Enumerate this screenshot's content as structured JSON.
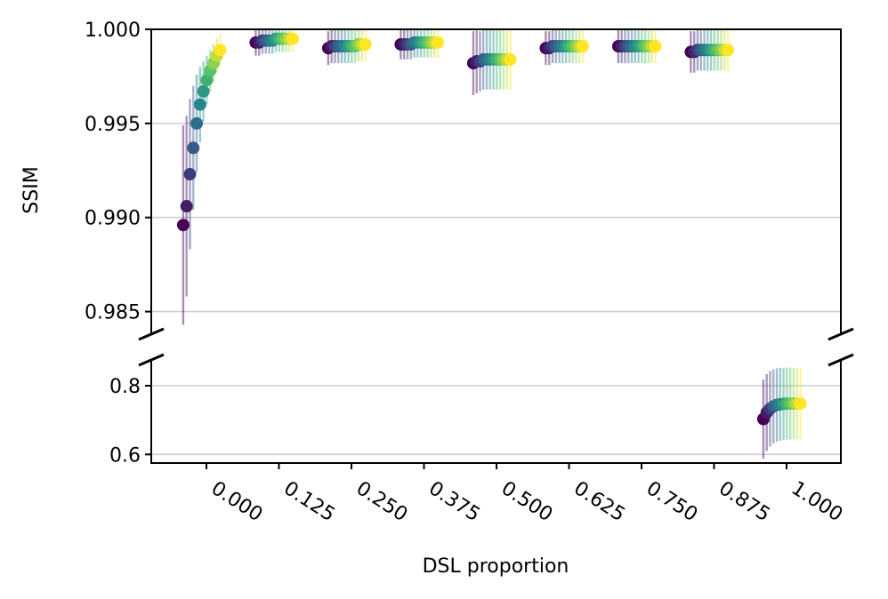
{
  "chart_data": {
    "type": "scatter",
    "title": "",
    "xlabel": "DSL proportion",
    "ylabel": "SSIM",
    "x_ticks": [
      "0.000",
      "0.125",
      "0.250",
      "0.375",
      "0.500",
      "0.625",
      "0.750",
      "0.875",
      "1.000"
    ],
    "xlim": [
      -0.095,
      1.09
    ],
    "broken_y_axis": true,
    "upper_panel": {
      "ylim": [
        0.9838,
        1.0
      ],
      "ticks": [
        "1.000",
        "0.995",
        "0.990",
        "0.985"
      ]
    },
    "lower_panel": {
      "ylim": [
        0.575,
        0.875
      ],
      "ticks": [
        "0.8",
        "0.6"
      ]
    },
    "grid": "horizontal",
    "colormap": [
      "#440154",
      "#3b528b",
      "#21918c",
      "#5ec962",
      "#fde725"
    ],
    "points_per_group": 12,
    "point_spacing": 0.0058,
    "groups": [
      {
        "x_start": -0.04,
        "panel": "upper",
        "mean": [
          0.9896,
          0.9906,
          0.9923,
          0.9937,
          0.995,
          0.996,
          0.9967,
          0.9973,
          0.9978,
          0.9982,
          0.9986,
          0.9989
        ],
        "err": [
          0.0053,
          0.0048,
          0.004,
          0.0033,
          0.0026,
          0.002,
          0.0016,
          0.0013,
          0.0011,
          0.001,
          0.0009,
          0.0008
        ]
      },
      {
        "x_start": 0.085,
        "panel": "upper",
        "mean": [
          0.9993,
          0.9993,
          0.9994,
          0.9994,
          0.9994,
          0.9994,
          0.9995,
          0.9995,
          0.9995,
          0.9995,
          0.9995,
          0.9995
        ],
        "err": [
          0.0007,
          0.0007,
          0.0007,
          0.0007,
          0.0007,
          0.0007,
          0.0007,
          0.0007,
          0.0007,
          0.0007,
          0.0007,
          0.0007
        ]
      },
      {
        "x_start": 0.21,
        "panel": "upper",
        "mean": [
          0.999,
          0.9991,
          0.9991,
          0.9991,
          0.9991,
          0.9991,
          0.9991,
          0.9991,
          0.9991,
          0.9992,
          0.9992,
          0.9992
        ],
        "err": [
          0.0009,
          0.0009,
          0.0009,
          0.0009,
          0.0009,
          0.0009,
          0.0009,
          0.0009,
          0.0009,
          0.0009,
          0.0009,
          0.0009
        ]
      },
      {
        "x_start": 0.335,
        "panel": "upper",
        "mean": [
          0.9992,
          0.9992,
          0.9992,
          0.9992,
          0.9993,
          0.9993,
          0.9993,
          0.9993,
          0.9993,
          0.9993,
          0.9993,
          0.9993
        ],
        "err": [
          0.0008,
          0.0008,
          0.0008,
          0.0008,
          0.0008,
          0.0008,
          0.0008,
          0.0008,
          0.0008,
          0.0008,
          0.0008,
          0.0008
        ]
      },
      {
        "x_start": 0.46,
        "panel": "upper",
        "mean": [
          0.9982,
          0.9983,
          0.9983,
          0.9984,
          0.9984,
          0.9984,
          0.9984,
          0.9984,
          0.9984,
          0.9984,
          0.9984,
          0.9984
        ],
        "err": [
          0.0017,
          0.0017,
          0.0016,
          0.0016,
          0.0016,
          0.0016,
          0.0016,
          0.0016,
          0.0016,
          0.0016,
          0.0016,
          0.0016
        ]
      },
      {
        "x_start": 0.585,
        "panel": "upper",
        "mean": [
          0.999,
          0.999,
          0.9991,
          0.9991,
          0.9991,
          0.9991,
          0.9991,
          0.9991,
          0.9991,
          0.9991,
          0.9991,
          0.9991
        ],
        "err": [
          0.0009,
          0.0009,
          0.0009,
          0.0009,
          0.0009,
          0.0009,
          0.0009,
          0.0009,
          0.0009,
          0.0009,
          0.0009,
          0.0009
        ]
      },
      {
        "x_start": 0.71,
        "panel": "upper",
        "mean": [
          0.9991,
          0.9991,
          0.9991,
          0.9991,
          0.9991,
          0.9991,
          0.9991,
          0.9991,
          0.9991,
          0.9991,
          0.9991,
          0.9991
        ],
        "err": [
          0.0009,
          0.0009,
          0.0009,
          0.0009,
          0.0009,
          0.0009,
          0.0009,
          0.0009,
          0.0009,
          0.0009,
          0.0009,
          0.0009
        ]
      },
      {
        "x_start": 0.835,
        "panel": "upper",
        "mean": [
          0.9988,
          0.9988,
          0.9989,
          0.9989,
          0.9989,
          0.9989,
          0.9989,
          0.9989,
          0.9989,
          0.9989,
          0.9989,
          0.9989
        ],
        "err": [
          0.0011,
          0.0011,
          0.0011,
          0.0011,
          0.0011,
          0.0011,
          0.0011,
          0.0011,
          0.0011,
          0.0011,
          0.0011,
          0.0011
        ]
      },
      {
        "x_start": 0.96,
        "panel": "lower",
        "mean": [
          0.703,
          0.722,
          0.733,
          0.74,
          0.744,
          0.746,
          0.747,
          0.748,
          0.748,
          0.748,
          0.748,
          0.748
        ],
        "err": [
          0.115,
          0.112,
          0.11,
          0.108,
          0.107,
          0.106,
          0.105,
          0.105,
          0.104,
          0.104,
          0.104,
          0.104
        ]
      }
    ]
  }
}
